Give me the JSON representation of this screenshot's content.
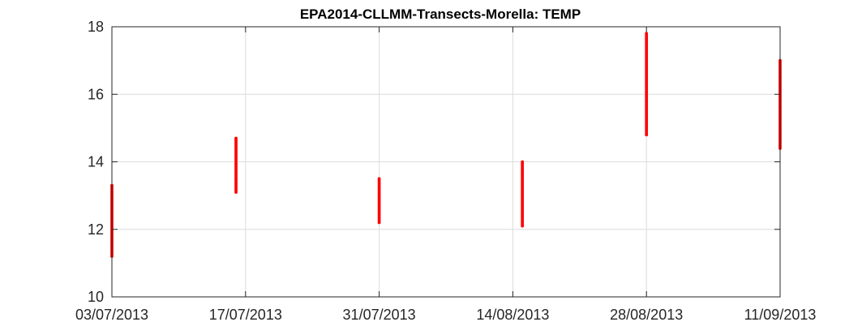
{
  "chart_data": {
    "type": "scatter",
    "title": "EPA2014-CLLMM-Transects-Morella: TEMP",
    "xlabel": "",
    "ylabel": "",
    "xlim": [
      "2013-07-03",
      "2013-09-11"
    ],
    "ylim": [
      10,
      18
    ],
    "x_ticks": [
      "03/07/2013",
      "17/07/2013",
      "31/07/2013",
      "14/08/2013",
      "28/08/2013",
      "11/09/2013"
    ],
    "y_ticks": [
      10,
      12,
      14,
      16,
      18
    ],
    "grid": true,
    "marker_color": "#ff0000",
    "series": [
      {
        "points": [
          {
            "date": "2013-07-03",
            "min": 11.2,
            "max": 13.3
          },
          {
            "date": "2013-07-16",
            "min": 13.1,
            "max": 14.7
          },
          {
            "date": "2013-07-31",
            "min": 12.2,
            "max": 13.5
          },
          {
            "date": "2013-08-15",
            "min": 12.1,
            "max": 14.0
          },
          {
            "date": "2013-08-28",
            "min": 14.8,
            "max": 17.8
          },
          {
            "date": "2013-09-11",
            "min": 14.4,
            "max": 17.0
          }
        ]
      }
    ]
  }
}
